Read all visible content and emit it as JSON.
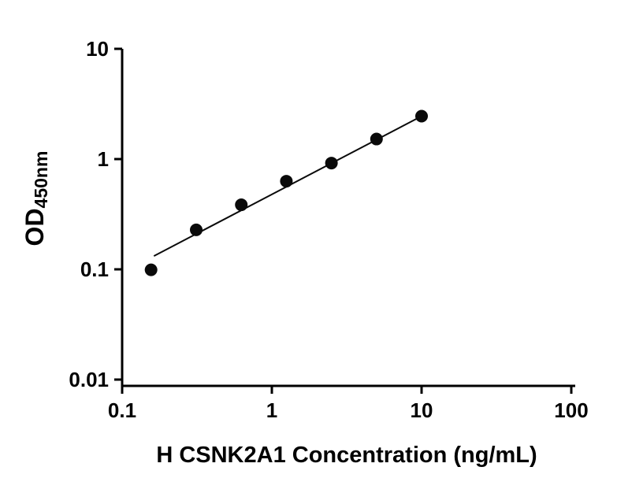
{
  "chart_data": {
    "type": "scatter",
    "title": "",
    "xlabel": "H CSNK2A1 Concentration (ng/mL)",
    "ylabel_main": "OD",
    "ylabel_sub": "450nm",
    "x_scale": "log",
    "y_scale": "log",
    "xlim": [
      0.1,
      100
    ],
    "ylim": [
      0.01,
      10
    ],
    "grid": false,
    "legend": null,
    "x_ticks": [
      {
        "value": 0.1,
        "label": "0.1"
      },
      {
        "value": 1,
        "label": "1"
      },
      {
        "value": 10,
        "label": "10"
      },
      {
        "value": 100,
        "label": "100"
      }
    ],
    "y_ticks": [
      {
        "value": 0.01,
        "label": "0.01"
      },
      {
        "value": 0.1,
        "label": "0.1"
      },
      {
        "value": 1,
        "label": "1"
      },
      {
        "value": 10,
        "label": "10"
      }
    ],
    "points": [
      {
        "x": 0.156,
        "y": 0.099
      },
      {
        "x": 0.3125,
        "y": 0.228
      },
      {
        "x": 0.625,
        "y": 0.385
      },
      {
        "x": 1.25,
        "y": 0.63
      },
      {
        "x": 2.5,
        "y": 0.92
      },
      {
        "x": 5,
        "y": 1.52
      },
      {
        "x": 10,
        "y": 2.45
      }
    ],
    "fit_line": {
      "x1": 0.163,
      "y1": 0.132,
      "x2": 10,
      "y2": 2.45
    },
    "colors": {
      "axis": "#000000",
      "point": "#0a0a0a",
      "line": "#0a0a0a",
      "text": "#000000",
      "background": "#ffffff"
    }
  }
}
